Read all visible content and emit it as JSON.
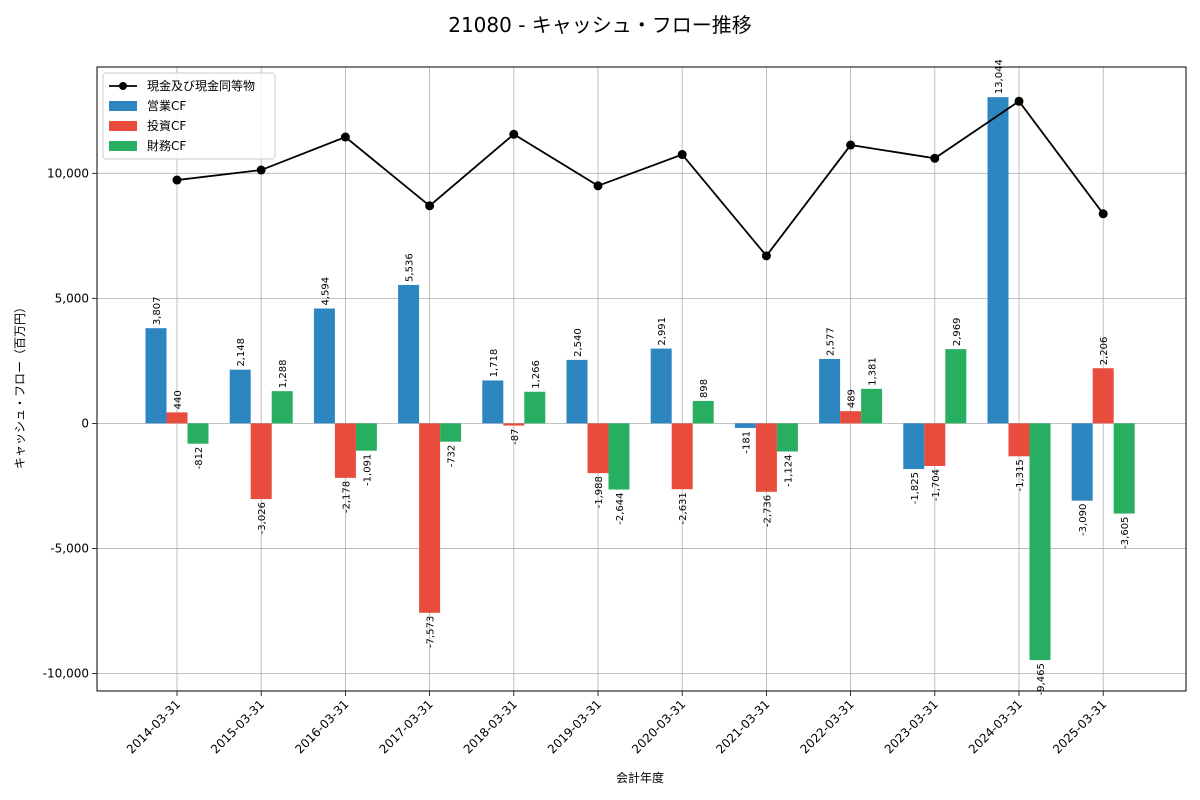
{
  "chart_data": {
    "type": "bar",
    "title": "21080 - キャッシュ・フロー推移",
    "xlabel": "会計年度",
    "ylabel": "キャッシュ・フロー（百万円）",
    "categories": [
      "2014-03-31",
      "2015-03-31",
      "2016-03-31",
      "2017-03-31",
      "2018-03-31",
      "2019-03-31",
      "2020-03-31",
      "2021-03-31",
      "2022-03-31",
      "2023-03-31",
      "2024-03-31",
      "2025-03-31"
    ],
    "series": [
      {
        "name": "営業CF",
        "type": "bar",
        "color": "#2e86c1",
        "values": [
          3807,
          2148,
          4594,
          5536,
          1718,
          2540,
          2991,
          -181,
          2577,
          -1825,
          13044,
          -3090
        ],
        "labels": [
          "3,807",
          "2,148",
          "4,594",
          "5,536",
          "1,718",
          "2,540",
          "2,991",
          "-181",
          "2,577",
          "-1,825",
          "13,044",
          "-3,090"
        ]
      },
      {
        "name": "投資CF",
        "type": "bar",
        "color": "#e74c3c",
        "values": [
          440,
          -3026,
          -2178,
          -7573,
          -87,
          -1988,
          -2631,
          -2736,
          489,
          -1704,
          -1315,
          2206
        ],
        "labels": [
          "440",
          "-3,026",
          "-2,178",
          "-7,573",
          "-87",
          "-1,988",
          "-2,631",
          "-2,736",
          "489",
          "-1,704",
          "-1,315",
          "2,206"
        ]
      },
      {
        "name": "財務CF",
        "type": "bar",
        "color": "#27ae60",
        "values": [
          -812,
          1288,
          -1091,
          -732,
          1266,
          -2644,
          898,
          -1124,
          1381,
          2969,
          -9465,
          -3605
        ],
        "labels": [
          "-812",
          "1,288",
          "-1,091",
          "-732",
          "1,266",
          "-2,644",
          "898",
          "-1,124",
          "1,381",
          "2,969",
          "-9,465",
          "-3,605"
        ]
      },
      {
        "name": "現金及び現金同等物",
        "type": "line",
        "color": "#000000",
        "values": [
          9730,
          10130,
          11450,
          8700,
          11560,
          9500,
          10750,
          6700,
          11130,
          10600,
          12880,
          8380
        ]
      }
    ],
    "yticks": [
      -10000,
      -5000,
      0,
      5000,
      10000
    ],
    "ytick_labels": [
      "-10,000",
      "-5,000",
      "0",
      "5,000",
      "10,000"
    ],
    "ylim": [
      -10700,
      14250
    ],
    "grid": true,
    "legend_position": "top-left"
  }
}
